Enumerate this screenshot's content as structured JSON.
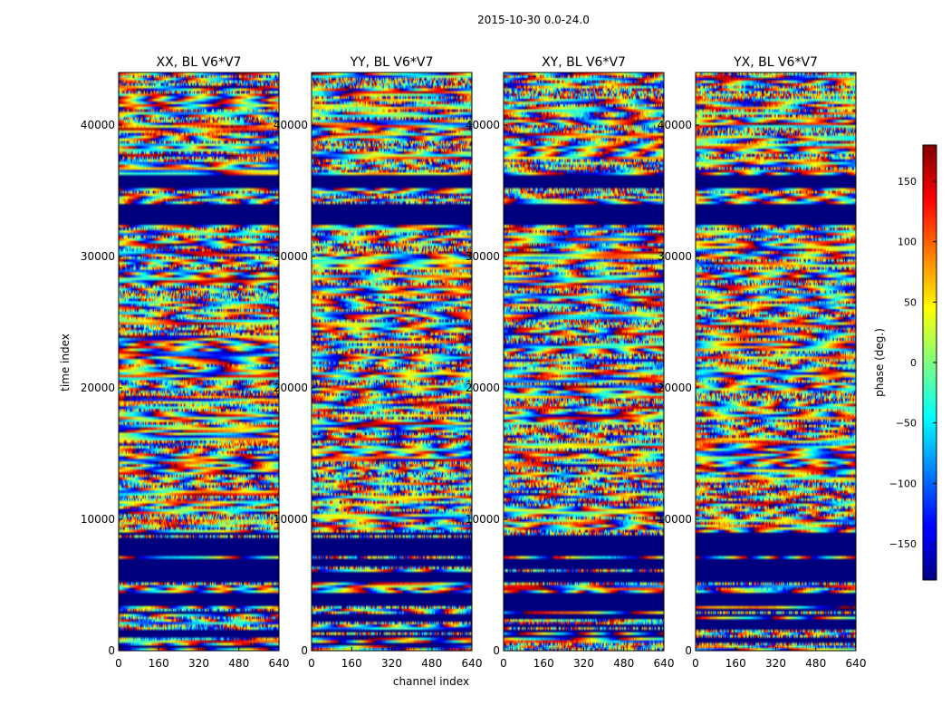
{
  "chart_data": {
    "type": "heatmap",
    "title": "2015-10-30 0.0-24.0",
    "xlabel": "channel index",
    "ylabel": "time index",
    "colorbar_label": "phase (deg.)",
    "colormap": "jet",
    "xlim": [
      0,
      640
    ],
    "ylim": [
      0,
      44000
    ],
    "clim": [
      -180,
      180
    ],
    "x_ticks": [
      0,
      160,
      320,
      480,
      640
    ],
    "y_ticks": [
      0,
      10000,
      20000,
      30000,
      40000
    ],
    "colorbar_ticks": [
      -150,
      -100,
      -50,
      0,
      50,
      100,
      150
    ],
    "colorbar_tick_labels": [
      "−150",
      "−100",
      "−50",
      "0",
      "50",
      "100",
      "150"
    ],
    "panels": [
      {
        "title": "XX, BL V6*V7",
        "seed": 11
      },
      {
        "title": "YY, BL V6*V7",
        "seed": 23
      },
      {
        "title": "XY, BL V6*V7",
        "seed": 37
      },
      {
        "title": "YX, BL V6*V7",
        "seed": 53
      }
    ],
    "blank_bands": [
      [
        32500,
        34000
      ],
      [
        35300,
        36300
      ],
      [
        3500,
        4400
      ],
      [
        5300,
        6100
      ],
      [
        6400,
        7000
      ],
      [
        7300,
        8600
      ]
    ],
    "blank_value": -180,
    "colors": {
      "blank": "#00007f",
      "frame": "#000000",
      "background": "#ffffff"
    }
  }
}
